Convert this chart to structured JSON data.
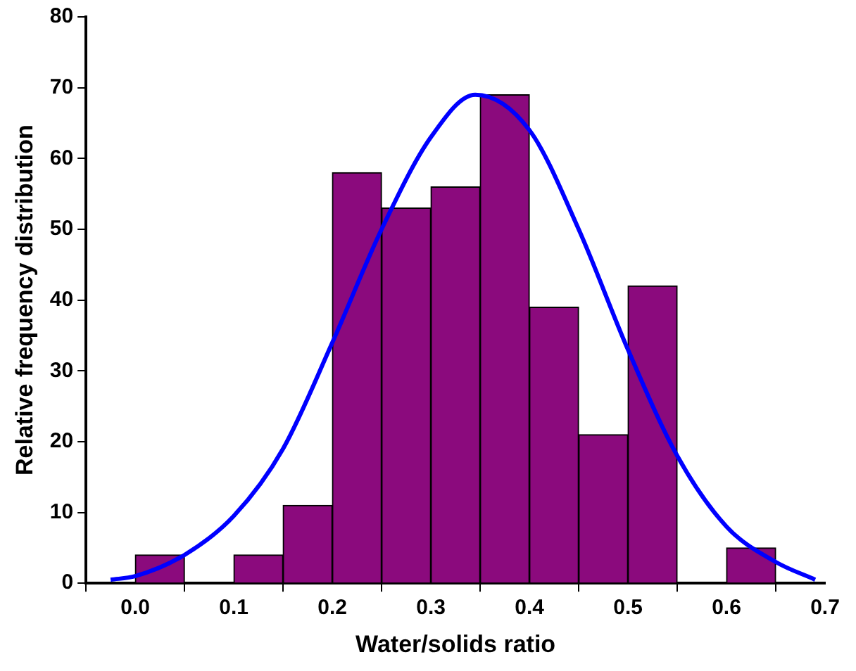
{
  "chart_data": {
    "type": "histogram",
    "xlabel": "Water/solids ratio",
    "ylabel": "Relative frequency distribution",
    "bins": [
      0,
      0.05,
      0.1,
      0.15,
      0.2,
      0.25,
      0.3,
      0.35,
      0.4,
      0.45,
      0.5,
      0.55,
      0.6,
      0.65
    ],
    "series": [
      {
        "type": "histogram",
        "color": "#8b0a7d",
        "values": [
          4,
          0,
          4,
          11,
          58,
          53,
          56,
          69,
          39,
          21,
          42,
          0,
          5
        ]
      },
      {
        "type": "line",
        "color": "#0000ff",
        "x": [
          -0.025,
          0,
          0.05,
          0.1,
          0.15,
          0.2,
          0.25,
          0.3,
          0.345,
          0.4,
          0.45,
          0.5,
          0.55,
          0.6,
          0.65,
          0.69
        ],
        "values": [
          0.5,
          1,
          4,
          9.5,
          19,
          34,
          50,
          63,
          69,
          64,
          50,
          33,
          18,
          8,
          3,
          0.5
        ]
      }
    ],
    "xlim": [
      -0.05,
      0.7
    ],
    "xticks": [
      {
        "value": 0,
        "label": "0.0"
      },
      {
        "value": 0.1,
        "label": "0.1"
      },
      {
        "value": 0.2,
        "label": "0.2"
      },
      {
        "value": 0.3,
        "label": "0.3"
      },
      {
        "value": 0.4,
        "label": "0.4"
      },
      {
        "value": 0.5,
        "label": "0.5"
      },
      {
        "value": 0.6,
        "label": "0.6"
      },
      {
        "value": 0.7,
        "label": "0.7"
      }
    ],
    "ylim": [
      0,
      80
    ],
    "yticks": [
      0,
      10,
      20,
      30,
      40,
      50,
      60,
      70,
      80
    ],
    "grid": false,
    "legend": false,
    "marker": "none"
  }
}
